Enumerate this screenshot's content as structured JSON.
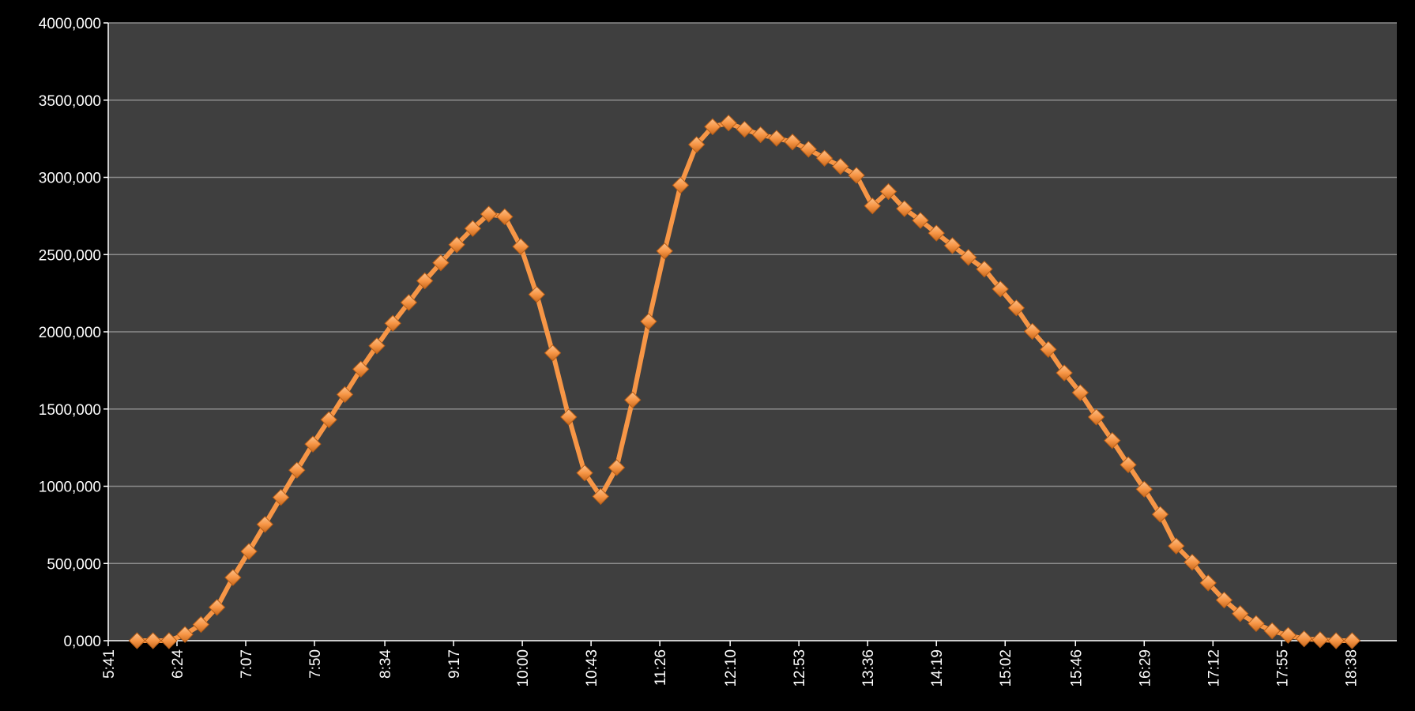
{
  "chart_data": {
    "type": "line",
    "color": "#f79646",
    "background": "#000000",
    "plot_background": "#3f3f3f",
    "grid": true,
    "x": [
      359,
      369,
      379,
      389,
      399,
      409,
      419,
      429,
      439,
      449,
      459,
      469,
      479,
      489,
      499,
      509,
      519,
      529,
      539,
      549,
      559,
      569,
      579,
      589,
      599,
      609,
      619,
      629,
      639,
      649,
      659,
      669,
      679,
      689,
      699,
      709,
      719,
      729,
      739,
      749,
      759,
      769,
      779,
      789,
      799,
      809,
      819,
      829,
      839,
      849,
      859,
      869,
      879,
      889,
      899,
      909,
      919,
      929,
      939,
      949,
      959,
      969,
      979,
      989,
      999,
      1009,
      1019,
      1029,
      1039,
      1049,
      1059,
      1069,
      1079,
      1089,
      1099,
      1109,
      1119
    ],
    "values": [
      0,
      0,
      0,
      40000,
      105000,
      216000,
      409000,
      578000,
      753000,
      928000,
      1104000,
      1273000,
      1431000,
      1594000,
      1758000,
      1909000,
      2055000,
      2190000,
      2330000,
      2447000,
      2564000,
      2669000,
      2762000,
      2745000,
      2552000,
      2242000,
      1863000,
      1448000,
      1086000,
      934000,
      1121000,
      1559000,
      2067000,
      2523000,
      2949000,
      3212000,
      3328000,
      3352000,
      3311000,
      3276000,
      3253000,
      3229000,
      3182000,
      3124000,
      3071000,
      3013000,
      2815000,
      2908000,
      2797000,
      2721000,
      2639000,
      2558000,
      2482000,
      2406000,
      2277000,
      2155000,
      2003000,
      1886000,
      1734000,
      1606000,
      1448000,
      1296000,
      1139000,
      981000,
      818000,
      613000,
      508000,
      374000,
      263000,
      175000,
      111000,
      64000,
      35000,
      12000,
      6000,
      0,
      0
    ],
    "xlim": [
      341,
      1147
    ],
    "xticks": [
      {
        "value": 341,
        "label": "5:41"
      },
      {
        "value": 384,
        "label": "6:24"
      },
      {
        "value": 427,
        "label": "7:07"
      },
      {
        "value": 470,
        "label": "7:50"
      },
      {
        "value": 514,
        "label": "8:34"
      },
      {
        "value": 557,
        "label": "9:17"
      },
      {
        "value": 600,
        "label": "10:00"
      },
      {
        "value": 643,
        "label": "10:43"
      },
      {
        "value": 686,
        "label": "11:26"
      },
      {
        "value": 730,
        "label": "12:10"
      },
      {
        "value": 773,
        "label": "12:53"
      },
      {
        "value": 816,
        "label": "13:36"
      },
      {
        "value": 859,
        "label": "14:19"
      },
      {
        "value": 902,
        "label": "15:02"
      },
      {
        "value": 946,
        "label": "15:46"
      },
      {
        "value": 989,
        "label": "16:29"
      },
      {
        "value": 1032,
        "label": "17:12"
      },
      {
        "value": 1075,
        "label": "17:55"
      },
      {
        "value": 1118,
        "label": "18:38"
      }
    ],
    "ylim": [
      0,
      4000000
    ],
    "yticks": [
      {
        "value": 0,
        "label": "0,000"
      },
      {
        "value": 500000,
        "label": "500,000"
      },
      {
        "value": 1000000,
        "label": "1000,000"
      },
      {
        "value": 1500000,
        "label": "1500,000"
      },
      {
        "value": 2000000,
        "label": "2000,000"
      },
      {
        "value": 2500000,
        "label": "2500,000"
      },
      {
        "value": 3000000,
        "label": "3000,000"
      },
      {
        "value": 3500000,
        "label": "3500,000"
      },
      {
        "value": 4000000,
        "label": "4000,000"
      }
    ]
  }
}
